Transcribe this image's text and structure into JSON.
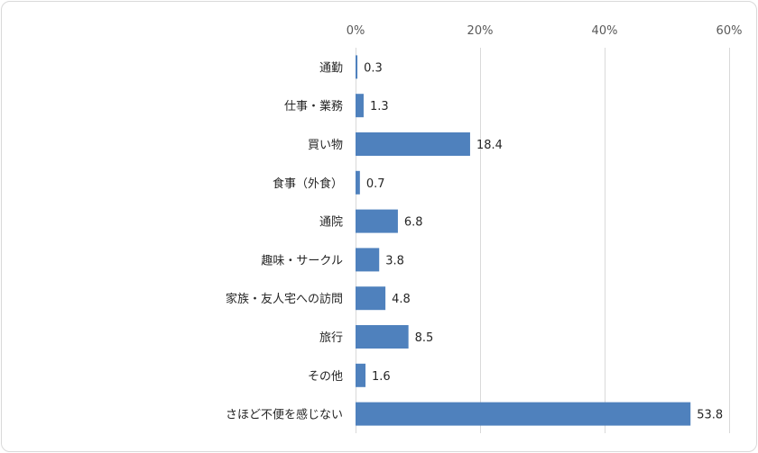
{
  "chart_data": {
    "type": "bar",
    "orientation": "horizontal",
    "categories": [
      "通勤",
      "仕事・業務",
      "買い物",
      "食事（外食）",
      "通院",
      "趣味・サークル",
      "家族・友人宅への訪問",
      "旅行",
      "その他",
      "さほど不便を感じない"
    ],
    "values": [
      0.3,
      1.3,
      18.4,
      0.7,
      6.8,
      3.8,
      4.8,
      8.5,
      1.6,
      53.8
    ],
    "value_labels": [
      "0.3",
      "1.3",
      "18.4",
      "0.7",
      "6.8",
      "3.8",
      "4.8",
      "8.5",
      "1.6",
      "53.8"
    ],
    "xlim": [
      0,
      60
    ],
    "xticks": [
      0,
      20,
      40,
      60
    ],
    "xtick_labels": [
      "0%",
      "20%",
      "40%",
      "60%"
    ],
    "axis_position": "top",
    "grid": true,
    "legend": "none",
    "bar_color": "#4f81bd",
    "grid_color": "#d9d9d9",
    "title": "",
    "xlabel": "",
    "ylabel": ""
  }
}
